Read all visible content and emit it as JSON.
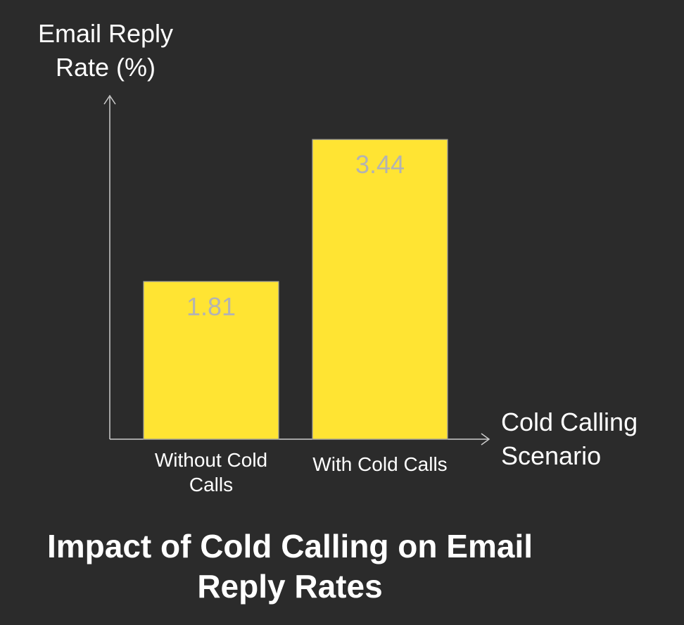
{
  "chart_data": {
    "type": "bar",
    "title_lines": [
      "Impact of Cold Calling on Email",
      "Reply Rates"
    ],
    "ylabel_lines": [
      "Email Reply",
      "Rate (%)"
    ],
    "xlabel_lines": [
      "Cold Calling",
      "Scenario"
    ],
    "categories": [
      [
        "Without Cold",
        "Calls"
      ],
      [
        "With Cold Calls"
      ]
    ],
    "values": [
      1.81,
      3.44
    ],
    "data_labels": [
      "1.81",
      "3.44"
    ],
    "ylim": [
      0,
      3.7
    ],
    "grid": false,
    "legend": "none",
    "colors": {
      "background": "#2b2b2b",
      "bar": "#ffe433",
      "bar_edge": "#9a9a9a",
      "axis": "#cccccc",
      "text": "#ffffff",
      "data_label": "#b3b3b3"
    }
  }
}
